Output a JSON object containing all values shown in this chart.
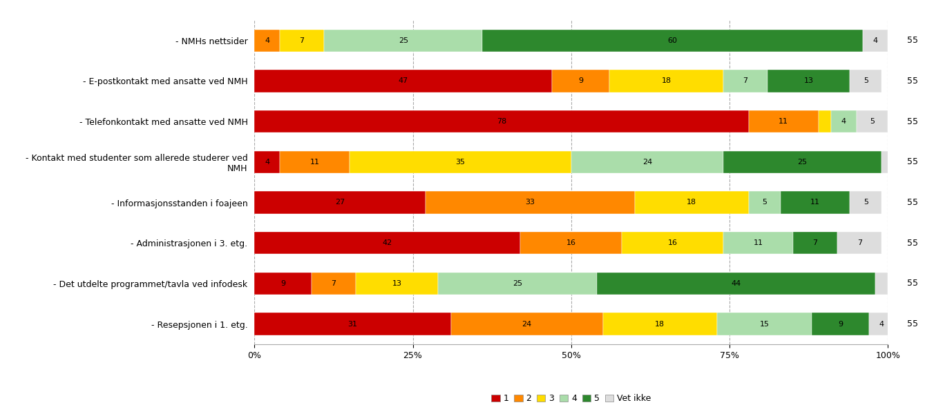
{
  "categories": [
    "- NMHs nettsider",
    "- E-postkontakt med ansatte ved NMH",
    "- Telefonkontakt med ansatte ved NMH",
    "- Kontakt med studenter som allerede studerer ved\nNMH",
    "- Informasjonsstanden i foajeen",
    "- Administrasjonen i 3. etg.",
    "- Det utdelte programmet/tavla ved infodesk",
    "- Resepsjonen i 1. etg."
  ],
  "n_values": [
    55,
    55,
    55,
    55,
    55,
    55,
    55,
    55
  ],
  "data": [
    [
      0,
      4,
      7,
      25,
      60,
      4
    ],
    [
      47,
      9,
      18,
      7,
      13,
      5
    ],
    [
      78,
      11,
      2,
      4,
      0,
      5
    ],
    [
      4,
      11,
      35,
      24,
      25,
      2
    ],
    [
      27,
      33,
      18,
      5,
      11,
      5
    ],
    [
      42,
      16,
      16,
      11,
      7,
      7
    ],
    [
      9,
      7,
      13,
      25,
      44,
      2
    ],
    [
      31,
      24,
      18,
      15,
      9,
      4
    ]
  ],
  "colors": [
    "#cc0000",
    "#ff8800",
    "#ffdd00",
    "#aaddaa",
    "#2d882d",
    "#dddddd"
  ],
  "legend_labels": [
    "1",
    "2",
    "3",
    "4",
    "5",
    "Vet ikke"
  ],
  "bar_height": 0.55,
  "xlim": [
    0,
    100
  ],
  "xticks": [
    0,
    25,
    50,
    75,
    100
  ],
  "xticklabels": [
    "0%",
    "25%",
    "50%",
    "75%",
    "100%"
  ],
  "background_color": "#ffffff",
  "grid_color": "#aaaaaa",
  "fontsize_labels": 9,
  "fontsize_bar": 8,
  "fontsize_legend": 9,
  "fontsize_xticks": 9,
  "n_fontsize": 9
}
